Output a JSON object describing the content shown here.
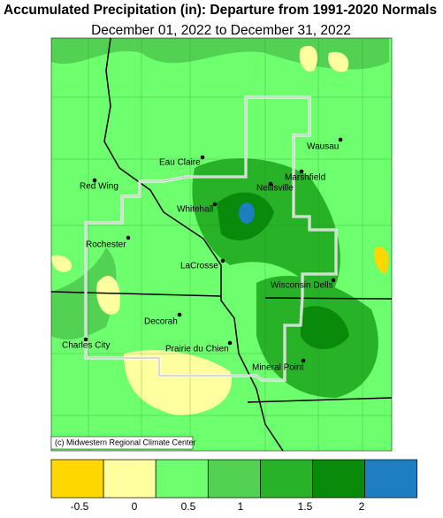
{
  "header": {
    "title": "Accumulated Precipitation (in): Departure from 1991-2020 Normals",
    "subtitle": "December 01, 2022 to December 31, 2022"
  },
  "cities": [
    "Wausau",
    "Eau Claire",
    "Marshfield",
    "Red Wing",
    "Neillsville",
    "Whitehall",
    "Rochester",
    "LaCrosse",
    "Wisconsin Dells",
    "Decorah",
    "Prairie du Chien",
    "Charles City",
    "Mineral Point"
  ],
  "credit": "(c) Midwestern Regional Climate Center",
  "legend": {
    "colors": [
      "#ffd700",
      "#ffff9f",
      "#6eff6e",
      "#52d152",
      "#28b228",
      "#0a8a0a",
      "#1e7ec0"
    ],
    "labels": [
      -0.5,
      0,
      0.5,
      1,
      1.5,
      2
    ]
  }
}
